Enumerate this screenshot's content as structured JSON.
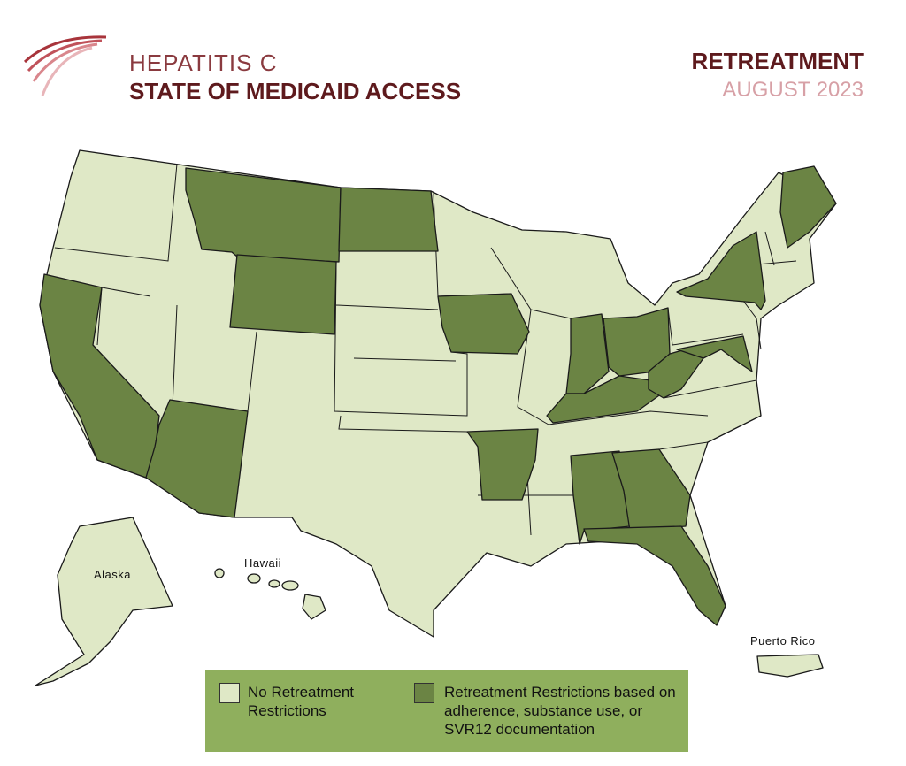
{
  "header": {
    "title_line1": "HEPATITIS C",
    "title_line2": "STATE OF MEDICAID ACCESS",
    "topic": "RETREATMENT",
    "date": "AUGUST 2023"
  },
  "map": {
    "labels": [
      "Alaska",
      "Hawaii",
      "Puerto Rico"
    ]
  },
  "legend": {
    "items": [
      {
        "label": "No Retreatment Restrictions",
        "color": "#dfe8c6"
      },
      {
        "label": "Retreatment Restrictions based on adherence, substance use, or SVR12 documentation",
        "color": "#6b8444"
      }
    ]
  }
}
